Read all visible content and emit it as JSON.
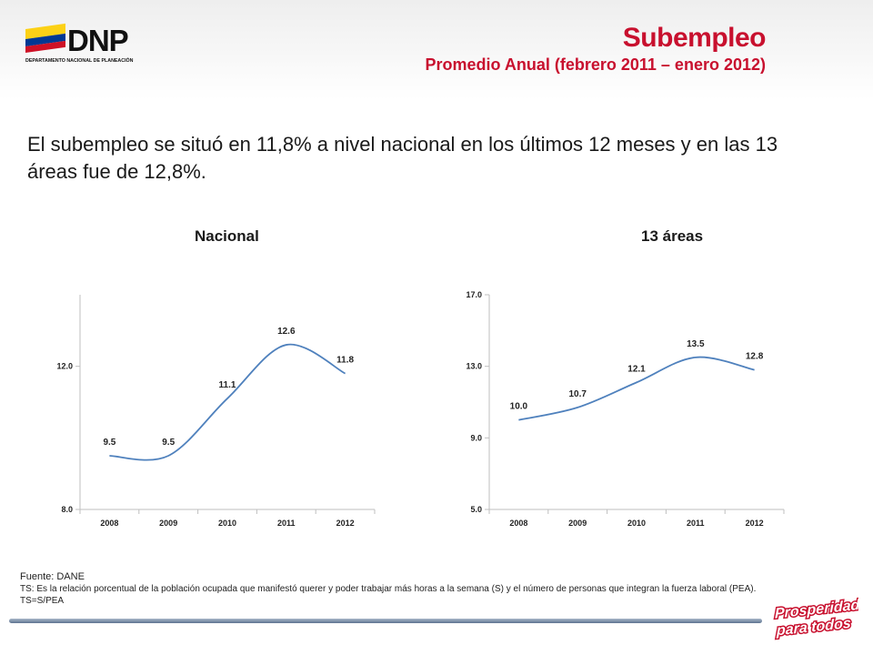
{
  "logo": {
    "text": "DNP",
    "subtext": "DEPARTAMENTO NACIONAL DE PLANEACIÓN"
  },
  "title": "Subempleo",
  "subtitle": "Promedio Anual (febrero 2011 – enero 2012)",
  "summary": "El subempleo se situó en 11,8% a nivel nacional en los últimos 12 meses y en las 13 áreas fue de 12,8%.",
  "chart_data": [
    {
      "type": "line",
      "title": "Nacional",
      "categories": [
        "2008",
        "2009",
        "2010",
        "2011",
        "2012"
      ],
      "series": [
        {
          "values": [
            9.5,
            9.5,
            11.1,
            12.6,
            11.8
          ],
          "color": "#4f81bd"
        }
      ],
      "labels": [
        "9.5",
        "9.5",
        "11.1",
        "12.6",
        "11.8"
      ],
      "yticks": [
        "8.0",
        "12.0"
      ],
      "ylim": [
        8,
        14
      ],
      "grid": false
    },
    {
      "type": "line",
      "title": "13 áreas",
      "categories": [
        "2008",
        "2009",
        "2010",
        "2011",
        "2012"
      ],
      "series": [
        {
          "values": [
            10.0,
            10.7,
            12.1,
            13.5,
            12.8
          ],
          "color": "#4f81bd"
        }
      ],
      "labels": [
        "10.0",
        "10.7",
        "12.1",
        "13.5",
        "12.8"
      ],
      "yticks": [
        "5.0",
        "9.0",
        "13.0",
        "17.0"
      ],
      "ylim": [
        5,
        17
      ],
      "grid": false
    }
  ],
  "notes": {
    "source": "Fuente:  DANE",
    "definition": "TS:  Es la relación porcentual de la población ocupada que manifestó querer y poder trabajar más horas a la semana (S) y el número de personas que integran la fuerza laboral (PEA). TS=S/PEA"
  },
  "slogan": {
    "line1": "Prosperidad",
    "line2": "para todos"
  }
}
